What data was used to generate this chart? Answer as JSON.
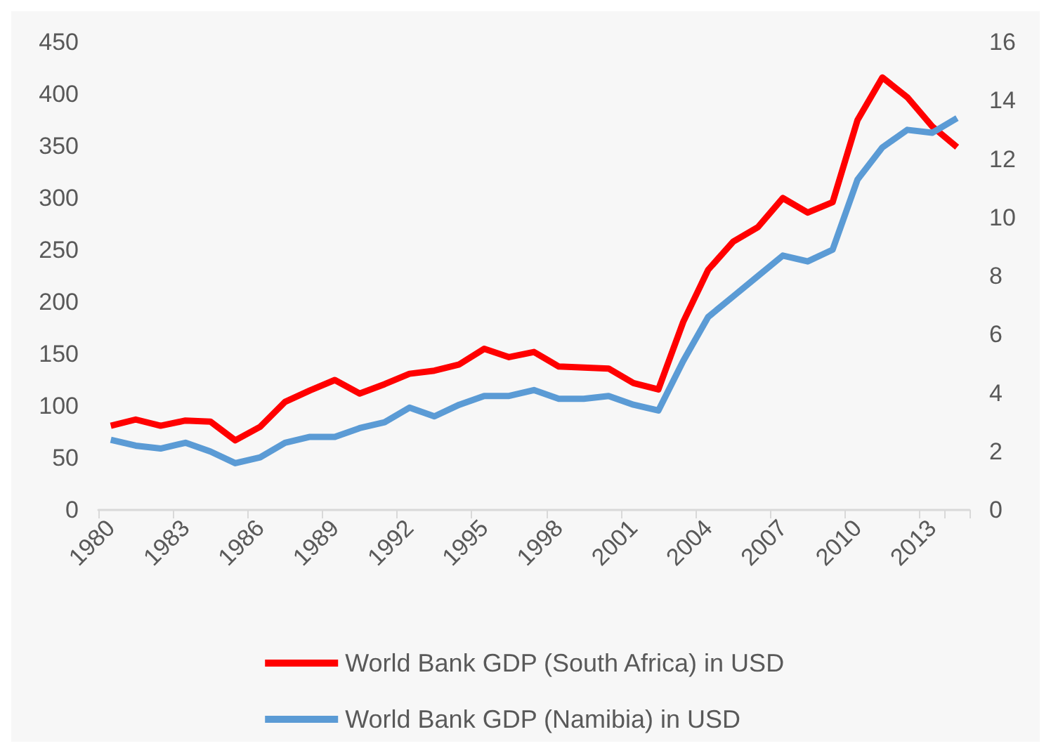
{
  "chart_data": {
    "type": "line",
    "categories": [
      "1980",
      null,
      null,
      "1983",
      null,
      null,
      "1986",
      null,
      null,
      "1989",
      null,
      null,
      "1992",
      null,
      null,
      "1995",
      null,
      null,
      "1998",
      null,
      null,
      "2001",
      null,
      null,
      "2004",
      null,
      null,
      "2007",
      null,
      null,
      "2010",
      null,
      null,
      "2013",
      null
    ],
    "series": [
      {
        "name": "World Bank GDP (South Africa) in USD",
        "color": "#ff0000",
        "values": [
          81,
          87,
          81,
          86,
          85,
          67,
          80,
          104,
          115,
          125,
          112,
          121,
          131,
          134,
          140,
          155,
          147,
          152,
          138,
          137,
          136,
          122,
          116,
          181,
          231,
          258,
          272,
          300,
          286,
          296,
          375,
          416,
          397,
          369,
          349
        ]
      },
      {
        "name": "World Bank GDP (Namibia) in USD",
        "color": "#5b9bd5",
        "axis": "y2",
        "values": [
          2.4,
          2.2,
          2.1,
          2.3,
          2.0,
          1.6,
          1.8,
          2.3,
          2.5,
          2.5,
          2.8,
          3.0,
          3.5,
          3.2,
          3.6,
          3.9,
          3.9,
          4.1,
          3.8,
          3.8,
          3.9,
          3.6,
          3.4,
          5.1,
          6.6,
          7.3,
          8.0,
          8.7,
          8.5,
          8.9,
          11.3,
          12.4,
          13.0,
          12.9,
          13.4
        ]
      }
    ],
    "ylim": [
      0,
      450
    ],
    "yticks": [
      0,
      50,
      100,
      150,
      200,
      250,
      300,
      350,
      400,
      450
    ],
    "y2lim": [
      0,
      16
    ],
    "y2ticks": [
      0,
      2,
      4,
      6,
      8,
      10,
      12,
      14,
      16
    ],
    "grid": false,
    "legend": "bottom",
    "marker": "none",
    "line_style": "solid"
  }
}
